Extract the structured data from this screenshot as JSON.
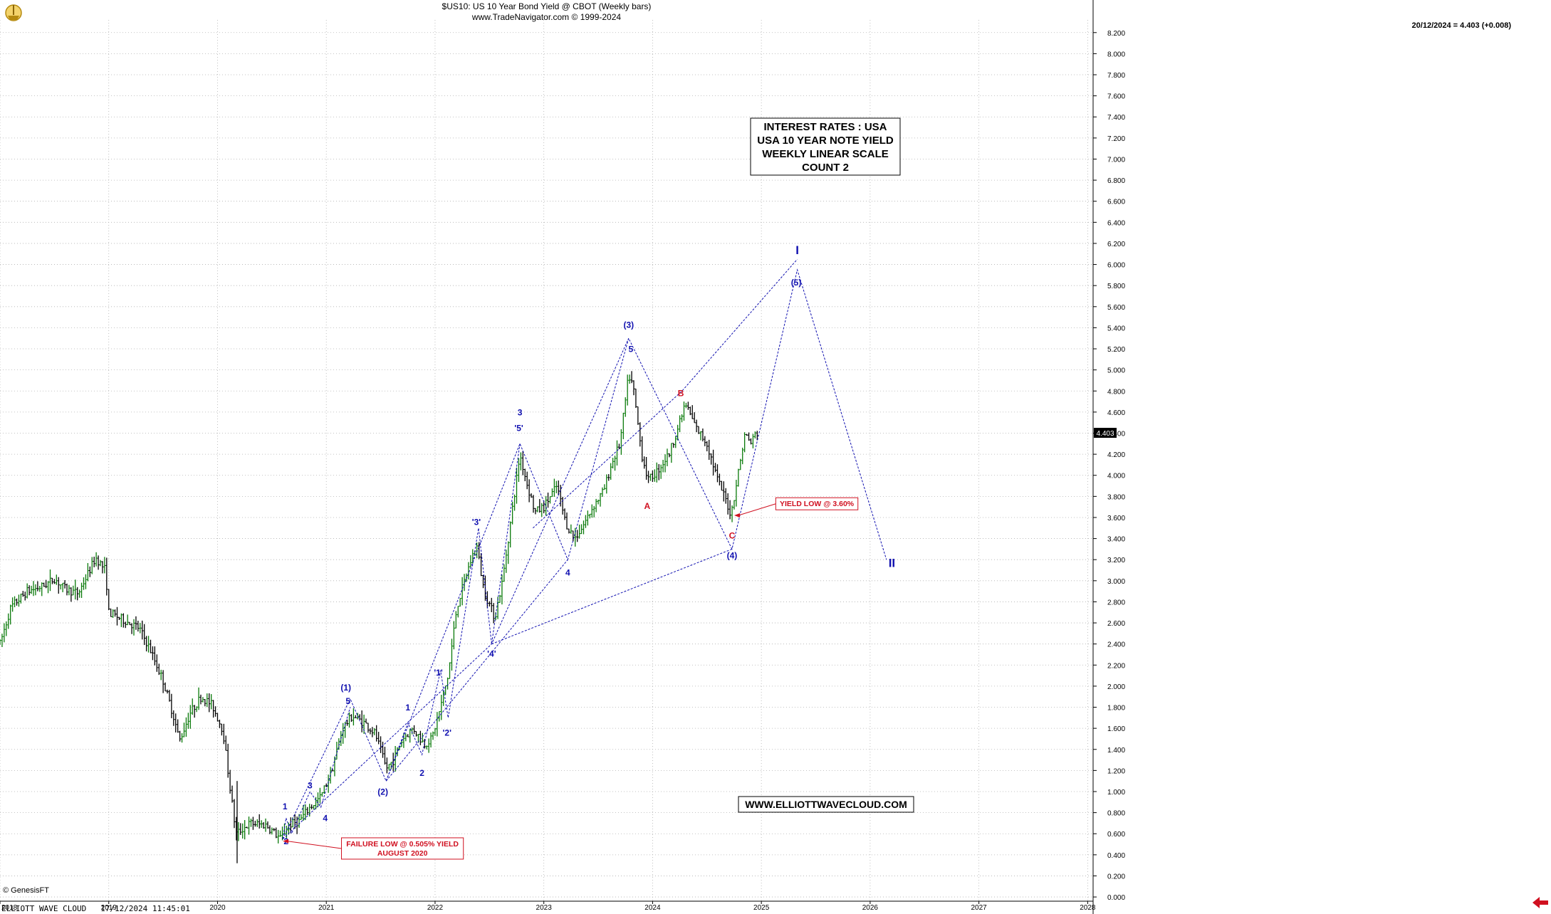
{
  "header": {
    "title": "$US10:  US 10 Year Bond Yield @ CBOT  (Weekly bars)",
    "subtitle": "www.TradeNavigator.com © 1999-2024",
    "last_value": "20/12/2024 = 4.403 (+0.008)",
    "price_tag": "4.403",
    "source": "© GenesisFT",
    "footer_left": "ELLIOTT WAVE CLOUD   17/12/2024 11:45:01"
  },
  "info_box": [
    "INTEREST RATES : USA",
    "USA 10 YEAR NOTE YIELD",
    "WEEKLY LINEAR SCALE",
    "COUNT 2"
  ],
  "website": "WWW.ELLIOTTWAVECLOUD.COM",
  "colors": {
    "wave_blue": "#1010b0",
    "wave_red": "#d01020",
    "bar_green": "#0a7a0a",
    "bar_black": "#000000",
    "grid": "#b0b0b0"
  },
  "chart_data": {
    "type": "ohlc",
    "x_axis": {
      "range": [
        2018.0,
        2028.05
      ],
      "tick_labels": [
        "2018",
        "2019",
        "2020",
        "2021",
        "2022",
        "2023",
        "2024",
        "2025",
        "2026",
        "2027",
        "2028"
      ]
    },
    "y_axis": {
      "range": [
        -0.04,
        8.32
      ],
      "tick_labels": [
        "8.200",
        "8.000",
        "7.800",
        "7.600",
        "7.400",
        "7.200",
        "7.000",
        "6.800",
        "6.600",
        "6.400",
        "6.200",
        "6.000",
        "5.800",
        "5.600",
        "5.400",
        "5.200",
        "5.000",
        "4.800",
        "4.600",
        "4.400",
        "4.200",
        "4.000",
        "3.800",
        "3.600",
        "3.400",
        "3.200",
        "3.000",
        "2.800",
        "2.600",
        "2.400",
        "2.200",
        "2.000",
        "1.800",
        "1.600",
        "1.400",
        "1.200",
        "1.000",
        "0.800",
        "0.600",
        "0.400",
        "0.200",
        "0.000"
      ]
    },
    "grid": true,
    "price_path": [
      [
        2018.0,
        2.4
      ],
      [
        2018.1,
        2.75
      ],
      [
        2018.25,
        2.9
      ],
      [
        2018.4,
        2.95
      ],
      [
        2018.5,
        3.02
      ],
      [
        2018.6,
        2.92
      ],
      [
        2018.72,
        2.88
      ],
      [
        2018.8,
        3.05
      ],
      [
        2018.88,
        3.22
      ],
      [
        2018.97,
        3.1
      ],
      [
        2019.0,
        2.7
      ],
      [
        2019.15,
        2.62
      ],
      [
        2019.28,
        2.55
      ],
      [
        2019.38,
        2.35
      ],
      [
        2019.5,
        2.05
      ],
      [
        2019.6,
        1.7
      ],
      [
        2019.65,
        1.48
      ],
      [
        2019.75,
        1.75
      ],
      [
        2019.85,
        1.9
      ],
      [
        2019.95,
        1.82
      ],
      [
        2020.05,
        1.58
      ],
      [
        2020.12,
        1.0
      ],
      [
        2020.17,
        0.6
      ],
      [
        2020.3,
        0.7
      ],
      [
        2020.45,
        0.68
      ],
      [
        2020.58,
        0.55
      ],
      [
        2020.65,
        0.68
      ],
      [
        2020.75,
        0.72
      ],
      [
        2020.85,
        0.85
      ],
      [
        2020.95,
        0.95
      ],
      [
        2021.05,
        1.2
      ],
      [
        2021.15,
        1.6
      ],
      [
        2021.24,
        1.72
      ],
      [
        2021.35,
        1.65
      ],
      [
        2021.45,
        1.55
      ],
      [
        2021.55,
        1.22
      ],
      [
        2021.62,
        1.3
      ],
      [
        2021.7,
        1.5
      ],
      [
        2021.8,
        1.6
      ],
      [
        2021.9,
        1.45
      ],
      [
        2021.97,
        1.5
      ],
      [
        2022.05,
        1.8
      ],
      [
        2022.12,
        2.1
      ],
      [
        2022.2,
        2.75
      ],
      [
        2022.3,
        3.1
      ],
      [
        2022.38,
        3.35
      ],
      [
        2022.45,
        2.9
      ],
      [
        2022.55,
        2.65
      ],
      [
        2022.62,
        3.0
      ],
      [
        2022.7,
        3.6
      ],
      [
        2022.78,
        4.2
      ],
      [
        2022.85,
        3.9
      ],
      [
        2022.92,
        3.65
      ],
      [
        2023.0,
        3.7
      ],
      [
        2023.12,
        3.9
      ],
      [
        2023.2,
        3.55
      ],
      [
        2023.28,
        3.4
      ],
      [
        2023.35,
        3.5
      ],
      [
        2023.45,
        3.7
      ],
      [
        2023.55,
        3.85
      ],
      [
        2023.62,
        4.1
      ],
      [
        2023.7,
        4.3
      ],
      [
        2023.78,
        4.95
      ],
      [
        2023.82,
        4.85
      ],
      [
        2023.9,
        4.2
      ],
      [
        2023.96,
        3.95
      ],
      [
        2024.05,
        4.05
      ],
      [
        2024.15,
        4.2
      ],
      [
        2024.25,
        4.5
      ],
      [
        2024.3,
        4.68
      ],
      [
        2024.4,
        4.45
      ],
      [
        2024.5,
        4.3
      ],
      [
        2024.6,
        3.95
      ],
      [
        2024.68,
        3.75
      ],
      [
        2024.72,
        3.62
      ],
      [
        2024.8,
        4.1
      ],
      [
        2024.85,
        4.4
      ],
      [
        2024.9,
        4.3
      ],
      [
        2024.95,
        4.4
      ]
    ],
    "bars_visible_range": [
      2018.0,
      2024.97
    ],
    "wave_lines": [
      {
        "color": "blue",
        "points": [
          [
            2020.6,
            0.55
          ],
          [
            2021.22,
            1.88
          ],
          [
            2021.55,
            1.1
          ],
          [
            2022.78,
            4.3
          ],
          [
            2023.22,
            3.2
          ],
          [
            2023.78,
            5.3
          ],
          [
            2024.73,
            3.3
          ],
          [
            2025.33,
            5.95
          ],
          [
            2026.15,
            3.2
          ]
        ]
      },
      {
        "color": "blue",
        "points": [
          [
            2020.6,
            0.55
          ],
          [
            2020.63,
            0.75
          ],
          [
            2020.68,
            0.6
          ],
          [
            2020.85,
            1.0
          ],
          [
            2020.95,
            0.85
          ],
          [
            2021.22,
            1.8
          ]
        ]
      },
      {
        "color": "blue",
        "points": [
          [
            2021.55,
            1.1
          ],
          [
            2021.75,
            1.65
          ],
          [
            2021.88,
            1.35
          ],
          [
            2022.05,
            2.15
          ],
          [
            2022.12,
            1.7
          ],
          [
            2022.4,
            3.5
          ],
          [
            2022.52,
            2.4
          ],
          [
            2022.78,
            4.3
          ]
        ]
      },
      {
        "color": "blue",
        "points": [
          [
            2021.55,
            1.1
          ],
          [
            2023.22,
            3.2
          ]
        ]
      },
      {
        "color": "blue",
        "points": [
          [
            2020.6,
            0.55
          ],
          [
            2022.52,
            2.4
          ],
          [
            2023.78,
            5.3
          ]
        ]
      },
      {
        "color": "blue",
        "points": [
          [
            2022.52,
            2.4
          ],
          [
            2024.73,
            3.3
          ]
        ]
      },
      {
        "color": "blue",
        "points": [
          [
            2022.9,
            3.5
          ],
          [
            2024.27,
            4.8
          ],
          [
            2025.33,
            6.05
          ]
        ]
      }
    ],
    "wave_labels": [
      {
        "text": "1",
        "x": 2020.62,
        "y": 0.83,
        "color": "blue"
      },
      {
        "text": "2",
        "x": 2020.63,
        "y": 0.5,
        "color": "blue"
      },
      {
        "text": "3",
        "x": 2020.85,
        "y": 1.03,
        "color": "blue"
      },
      {
        "text": "4",
        "x": 2020.99,
        "y": 0.72,
        "color": "blue"
      },
      {
        "text": "(1)",
        "x": 2021.18,
        "y": 1.96,
        "color": "blue"
      },
      {
        "text": "5",
        "x": 2021.2,
        "y": 1.83,
        "color": "blue"
      },
      {
        "text": "(2)",
        "x": 2021.52,
        "y": 0.97,
        "color": "blue"
      },
      {
        "text": "1",
        "x": 2021.75,
        "y": 1.77,
        "color": "blue"
      },
      {
        "text": "2",
        "x": 2021.88,
        "y": 1.15,
        "color": "blue"
      },
      {
        "text": "'1'",
        "x": 2022.03,
        "y": 2.1,
        "color": "blue"
      },
      {
        "text": "'2'",
        "x": 2022.11,
        "y": 1.53,
        "color": "blue"
      },
      {
        "text": "'3'",
        "x": 2022.38,
        "y": 3.53,
        "color": "blue"
      },
      {
        "text": "'4'",
        "x": 2022.52,
        "y": 2.28,
        "color": "blue"
      },
      {
        "text": "3",
        "x": 2022.78,
        "y": 4.57,
        "color": "blue"
      },
      {
        "text": "'5'",
        "x": 2022.77,
        "y": 4.42,
        "color": "blue"
      },
      {
        "text": "4",
        "x": 2023.22,
        "y": 3.05,
        "color": "blue"
      },
      {
        "text": "(3)",
        "x": 2023.78,
        "y": 5.4,
        "color": "blue"
      },
      {
        "text": "5",
        "x": 2023.8,
        "y": 5.17,
        "color": "blue"
      },
      {
        "text": "A",
        "x": 2023.95,
        "y": 3.68,
        "color": "red"
      },
      {
        "text": "B",
        "x": 2024.26,
        "y": 4.75,
        "color": "red"
      },
      {
        "text": "C",
        "x": 2024.73,
        "y": 3.4,
        "color": "red"
      },
      {
        "text": "(4)",
        "x": 2024.73,
        "y": 3.21,
        "color": "blue"
      },
      {
        "text": "(5)",
        "x": 2025.32,
        "y": 5.8,
        "color": "blue"
      },
      {
        "text": "I",
        "x": 2025.33,
        "y": 6.1,
        "color": "blue"
      },
      {
        "text": "II",
        "x": 2026.2,
        "y": 3.13,
        "color": "blue"
      }
    ],
    "callouts": [
      {
        "lines": [
          "YIELD LOW @ 3.60%"
        ],
        "x": 2025.51,
        "y": 3.73,
        "arrow_to": [
          2024.75,
          3.62
        ],
        "color": "red"
      },
      {
        "lines": [
          "FAILURE LOW @ 0.505% YIELD",
          "AUGUST 2020"
        ],
        "x": 2021.7,
        "y": 0.46,
        "arrow_to": [
          2020.6,
          0.53
        ],
        "color": "red"
      }
    ]
  }
}
